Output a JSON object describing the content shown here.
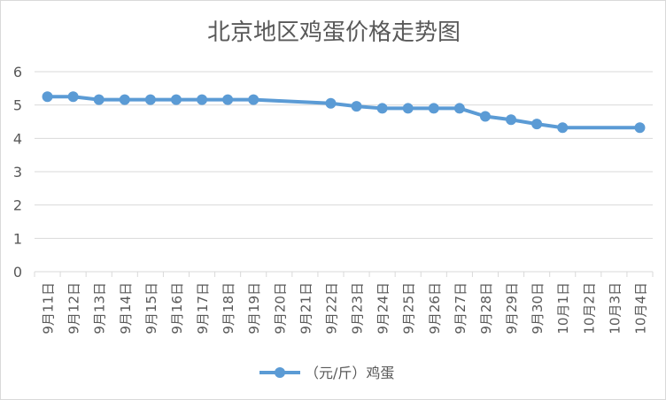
{
  "chart_data": {
    "type": "line",
    "title": "北京地区鸡蛋价格走势图",
    "categories": [
      "9月11日",
      "9月12日",
      "9月13日",
      "9月14日",
      "9月15日",
      "9月16日",
      "9月17日",
      "9月18日",
      "9月19日",
      "9月20日",
      "9月21日",
      "9月22日",
      "9月23日",
      "9月24日",
      "9月25日",
      "9月26日",
      "9月27日",
      "9月28日",
      "9月29日",
      "9月30日",
      "10月1日",
      "10月2日",
      "10月3日",
      "10月4日"
    ],
    "series": [
      {
        "name": "（元/斤）鸡蛋",
        "values": [
          5.25,
          5.25,
          5.16,
          5.16,
          5.16,
          5.16,
          5.16,
          5.16,
          5.16,
          null,
          null,
          5.05,
          4.96,
          4.9,
          4.9,
          4.9,
          4.9,
          4.66,
          4.56,
          4.43,
          4.32,
          null,
          null,
          4.32
        ]
      }
    ],
    "yticks": [
      0,
      1,
      2,
      3,
      4,
      5,
      6
    ],
    "ylim": [
      0,
      6
    ],
    "grid": true,
    "legend": "bottom",
    "colors": {
      "series": "#5b9bd5",
      "grid": "#d9d9d9",
      "text": "#595959"
    }
  }
}
